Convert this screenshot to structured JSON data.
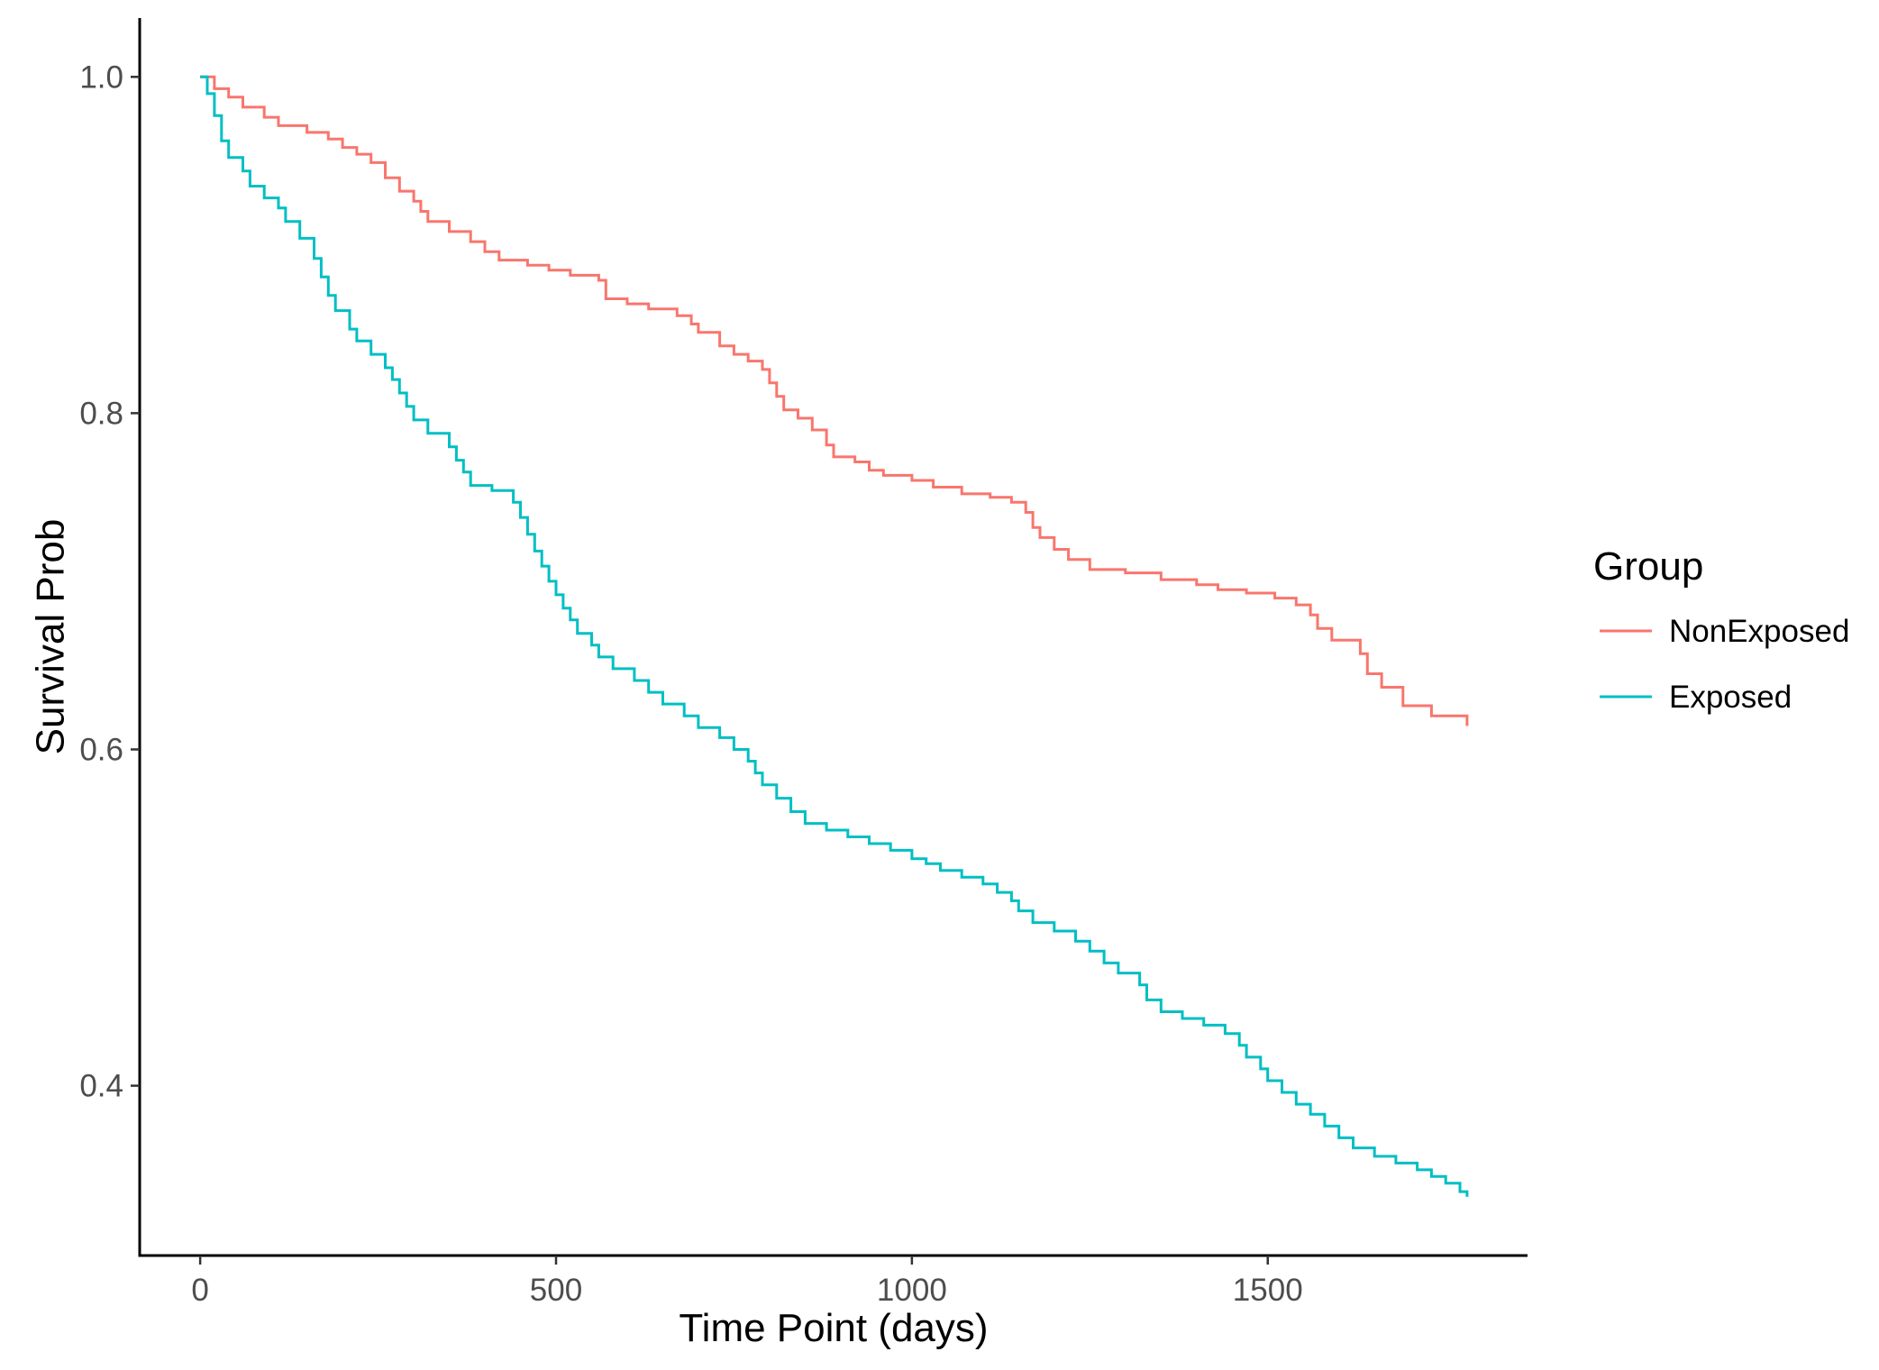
{
  "chart_data": {
    "type": "line",
    "step": true,
    "title": "",
    "xlabel": "Time Point (days)",
    "ylabel": "Survival Prob",
    "xlim": [
      -85,
      1865
    ],
    "ylim": [
      0.299,
      1.035
    ],
    "xticks": [
      0,
      500,
      1000,
      1500
    ],
    "xtick_labels": [
      "0",
      "500",
      "1000",
      "1500"
    ],
    "yticks": [
      0.4,
      0.6,
      0.8,
      1.0
    ],
    "ytick_labels": [
      "0.4",
      "0.6",
      "0.8",
      "1.0"
    ],
    "grid": false,
    "legend": {
      "title": "Group",
      "position": "right",
      "entries": [
        "NonExposed",
        "Exposed"
      ]
    },
    "series": [
      {
        "name": "NonExposed",
        "color": "#F8766D",
        "points": [
          [
            0,
            1.0
          ],
          [
            20,
            0.993
          ],
          [
            40,
            0.988
          ],
          [
            60,
            0.982
          ],
          [
            90,
            0.976
          ],
          [
            110,
            0.971
          ],
          [
            150,
            0.967
          ],
          [
            180,
            0.963
          ],
          [
            200,
            0.958
          ],
          [
            220,
            0.954
          ],
          [
            240,
            0.949
          ],
          [
            260,
            0.94
          ],
          [
            280,
            0.932
          ],
          [
            300,
            0.926
          ],
          [
            310,
            0.92
          ],
          [
            320,
            0.914
          ],
          [
            350,
            0.908
          ],
          [
            380,
            0.902
          ],
          [
            400,
            0.896
          ],
          [
            420,
            0.891
          ],
          [
            460,
            0.888
          ],
          [
            490,
            0.885
          ],
          [
            520,
            0.882
          ],
          [
            560,
            0.879
          ],
          [
            570,
            0.868
          ],
          [
            600,
            0.865
          ],
          [
            630,
            0.862
          ],
          [
            670,
            0.858
          ],
          [
            690,
            0.853
          ],
          [
            700,
            0.848
          ],
          [
            730,
            0.84
          ],
          [
            750,
            0.835
          ],
          [
            770,
            0.831
          ],
          [
            790,
            0.826
          ],
          [
            800,
            0.818
          ],
          [
            810,
            0.81
          ],
          [
            820,
            0.802
          ],
          [
            840,
            0.797
          ],
          [
            860,
            0.79
          ],
          [
            880,
            0.781
          ],
          [
            890,
            0.774
          ],
          [
            920,
            0.771
          ],
          [
            940,
            0.766
          ],
          [
            960,
            0.763
          ],
          [
            1000,
            0.76
          ],
          [
            1030,
            0.756
          ],
          [
            1070,
            0.752
          ],
          [
            1110,
            0.75
          ],
          [
            1140,
            0.747
          ],
          [
            1160,
            0.741
          ],
          [
            1170,
            0.732
          ],
          [
            1180,
            0.726
          ],
          [
            1200,
            0.719
          ],
          [
            1220,
            0.713
          ],
          [
            1250,
            0.707
          ],
          [
            1300,
            0.705
          ],
          [
            1350,
            0.701
          ],
          [
            1400,
            0.698
          ],
          [
            1430,
            0.695
          ],
          [
            1470,
            0.693
          ],
          [
            1510,
            0.69
          ],
          [
            1540,
            0.686
          ],
          [
            1560,
            0.68
          ],
          [
            1570,
            0.672
          ],
          [
            1590,
            0.665
          ],
          [
            1630,
            0.657
          ],
          [
            1640,
            0.645
          ],
          [
            1660,
            0.637
          ],
          [
            1690,
            0.626
          ],
          [
            1730,
            0.62
          ],
          [
            1780,
            0.614
          ]
        ]
      },
      {
        "name": "Exposed",
        "color": "#00BFC4",
        "points": [
          [
            0,
            1.0
          ],
          [
            10,
            0.99
          ],
          [
            20,
            0.977
          ],
          [
            30,
            0.962
          ],
          [
            40,
            0.952
          ],
          [
            60,
            0.944
          ],
          [
            70,
            0.935
          ],
          [
            90,
            0.928
          ],
          [
            110,
            0.922
          ],
          [
            120,
            0.914
          ],
          [
            140,
            0.904
          ],
          [
            160,
            0.892
          ],
          [
            170,
            0.881
          ],
          [
            180,
            0.87
          ],
          [
            190,
            0.861
          ],
          [
            210,
            0.85
          ],
          [
            220,
            0.843
          ],
          [
            240,
            0.835
          ],
          [
            260,
            0.827
          ],
          [
            270,
            0.82
          ],
          [
            280,
            0.812
          ],
          [
            290,
            0.804
          ],
          [
            300,
            0.796
          ],
          [
            320,
            0.788
          ],
          [
            350,
            0.78
          ],
          [
            360,
            0.772
          ],
          [
            370,
            0.765
          ],
          [
            380,
            0.757
          ],
          [
            410,
            0.754
          ],
          [
            440,
            0.747
          ],
          [
            450,
            0.738
          ],
          [
            460,
            0.728
          ],
          [
            470,
            0.718
          ],
          [
            480,
            0.709
          ],
          [
            490,
            0.7
          ],
          [
            500,
            0.692
          ],
          [
            510,
            0.684
          ],
          [
            520,
            0.677
          ],
          [
            530,
            0.669
          ],
          [
            550,
            0.662
          ],
          [
            560,
            0.655
          ],
          [
            580,
            0.648
          ],
          [
            610,
            0.641
          ],
          [
            630,
            0.634
          ],
          [
            650,
            0.627
          ],
          [
            680,
            0.62
          ],
          [
            700,
            0.613
          ],
          [
            730,
            0.607
          ],
          [
            750,
            0.6
          ],
          [
            770,
            0.593
          ],
          [
            780,
            0.586
          ],
          [
            790,
            0.579
          ],
          [
            810,
            0.571
          ],
          [
            830,
            0.563
          ],
          [
            850,
            0.556
          ],
          [
            880,
            0.552
          ],
          [
            910,
            0.548
          ],
          [
            940,
            0.544
          ],
          [
            970,
            0.54
          ],
          [
            1000,
            0.535
          ],
          [
            1020,
            0.532
          ],
          [
            1040,
            0.528
          ],
          [
            1070,
            0.524
          ],
          [
            1100,
            0.52
          ],
          [
            1120,
            0.515
          ],
          [
            1140,
            0.51
          ],
          [
            1150,
            0.504
          ],
          [
            1170,
            0.497
          ],
          [
            1200,
            0.492
          ],
          [
            1230,
            0.486
          ],
          [
            1250,
            0.48
          ],
          [
            1270,
            0.473
          ],
          [
            1290,
            0.467
          ],
          [
            1320,
            0.46
          ],
          [
            1330,
            0.451
          ],
          [
            1350,
            0.444
          ],
          [
            1380,
            0.44
          ],
          [
            1410,
            0.436
          ],
          [
            1440,
            0.431
          ],
          [
            1460,
            0.424
          ],
          [
            1470,
            0.417
          ],
          [
            1490,
            0.41
          ],
          [
            1500,
            0.403
          ],
          [
            1520,
            0.396
          ],
          [
            1540,
            0.389
          ],
          [
            1560,
            0.383
          ],
          [
            1580,
            0.376
          ],
          [
            1600,
            0.369
          ],
          [
            1620,
            0.363
          ],
          [
            1650,
            0.358
          ],
          [
            1680,
            0.354
          ],
          [
            1710,
            0.35
          ],
          [
            1730,
            0.346
          ],
          [
            1750,
            0.342
          ],
          [
            1770,
            0.337
          ],
          [
            1780,
            0.334
          ]
        ]
      }
    ]
  }
}
